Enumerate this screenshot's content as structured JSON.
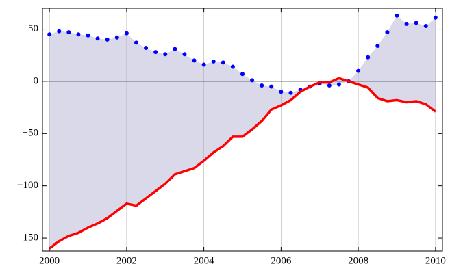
{
  "chart_data": {
    "type": "line",
    "x": [
      2000,
      2000.25,
      2000.5,
      2000.75,
      2001,
      2001.25,
      2001.5,
      2001.75,
      2002,
      2002.25,
      2002.5,
      2002.75,
      2003,
      2003.25,
      2003.5,
      2003.75,
      2004,
      2004.25,
      2004.5,
      2004.75,
      2005,
      2005.25,
      2005.5,
      2005.75,
      2006,
      2006.25,
      2006.5,
      2006.75,
      2007,
      2007.25,
      2007.5,
      2007.75,
      2008,
      2008.25,
      2008.5,
      2008.75,
      2009,
      2009.25,
      2009.5,
      2009.75,
      2010
    ],
    "series": [
      {
        "color": "#0000ff",
        "style": "dots",
        "values": [
          45,
          48,
          47,
          45,
          44,
          41,
          40,
          42,
          46,
          37,
          32,
          28,
          26,
          31,
          26,
          20,
          16,
          19,
          18,
          14,
          7,
          1,
          -4,
          -5,
          -10,
          -11,
          -8,
          -5,
          -2,
          -4,
          -3,
          0,
          10,
          23,
          34,
          47,
          63,
          55,
          56,
          53,
          61
        ]
      },
      {
        "color": "#ff0000",
        "style": "line",
        "values": [
          -160,
          -153,
          -148,
          -145,
          -140,
          -136,
          -131,
          -124,
          -117,
          -119,
          -112,
          -105,
          -98,
          -89,
          -86,
          -83,
          -76,
          -68,
          -62,
          -53,
          -53,
          -46,
          -38,
          -27,
          -23,
          -18,
          -10,
          -5,
          -1,
          -1,
          3,
          0,
          -3,
          -6,
          -16,
          -19,
          -18,
          -20,
          -19,
          -22,
          -29
        ]
      }
    ],
    "fill_between": true,
    "fill_color": "#d9d9ea",
    "xlim": [
      1999.82,
      2010.18
    ],
    "xticks": [
      2000,
      2002,
      2004,
      2006,
      2008,
      2010
    ],
    "ylim": [
      -162.4,
      70
    ],
    "yticks": [
      {
        "value": -150,
        "label": "−150"
      },
      {
        "value": -100,
        "label": "−100"
      },
      {
        "value": -50,
        "label": "−50"
      },
      0,
      50
    ],
    "grid": "x",
    "zero_line": true
  }
}
